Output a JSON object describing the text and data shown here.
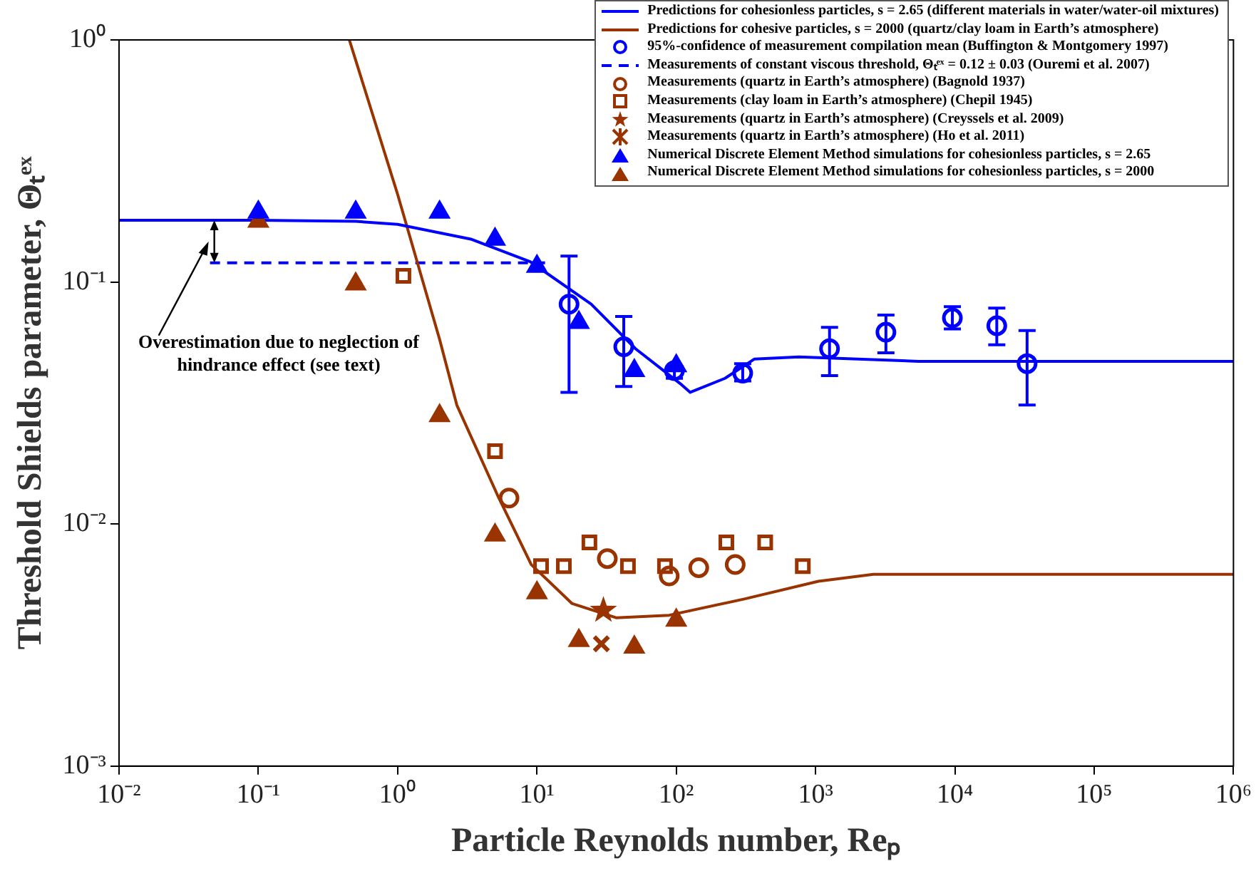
{
  "chart_data": {
    "type": "scatter",
    "xlabel": "Particle Reynolds number, Reₚ",
    "ylabel": "Threshold Shields parameter, Θₜᵉˣ",
    "log": "xy",
    "grid": false,
    "legend": "top right",
    "xlim": [
      0.01,
      1000000
    ],
    "ylim": [
      0.001,
      1
    ],
    "xticks": [
      {
        "value": 0.01,
        "label": "10⁻²"
      },
      {
        "value": 0.1,
        "label": "10⁻¹"
      },
      {
        "value": 1,
        "label": "10⁰"
      },
      {
        "value": 10,
        "label": "10¹"
      },
      {
        "value": 100,
        "label": "10²"
      },
      {
        "value": 1000,
        "label": "10³"
      },
      {
        "value": 10000,
        "label": "10⁴"
      },
      {
        "value": 100000,
        "label": "10⁵"
      },
      {
        "value": 1000000,
        "label": "10⁶"
      }
    ],
    "yticks": [
      {
        "value": 0.001,
        "label": "10⁻³"
      },
      {
        "value": 0.01,
        "label": "10⁻²"
      },
      {
        "value": 0.1,
        "label": "10⁻¹"
      },
      {
        "value": 1,
        "label": "10⁰"
      }
    ],
    "annotations": [
      "Overestimation due to neglection of hindrance effect (see text)"
    ],
    "series": [
      {
        "name": "Predictions for cohesionless particles, s = 2.65 (different materials in water/water-oil mixtures)",
        "type": "line",
        "marker": "none",
        "line_style": "solid",
        "color": "#0000ff",
        "x": [
          0.01,
          0.1,
          0.5,
          1,
          3.4,
          9,
          24.5,
          51,
          107,
          126,
          224,
          363,
          760,
          5500,
          1000000
        ],
        "values": [
          0.18,
          0.18,
          0.178,
          0.173,
          0.15,
          0.121,
          0.081,
          0.053,
          0.038,
          0.035,
          0.04,
          0.048,
          0.049,
          0.047,
          0.047
        ]
      },
      {
        "name": "Predictions for cohesive particles, s = 2000 (quartz/clay loam in Earth’s atmosphere)",
        "type": "line",
        "marker": "none",
        "line_style": "solid",
        "color": "#993300",
        "x": [
          0.45,
          1,
          2,
          2.66,
          5.2,
          9.1,
          17.8,
          37,
          89,
          308,
          1050,
          2600,
          1000000
        ],
        "values": [
          1.0,
          0.23,
          0.058,
          0.031,
          0.0132,
          0.0068,
          0.0047,
          0.0041,
          0.0042,
          0.0049,
          0.0058,
          0.0062,
          0.0062
        ]
      },
      {
        "name": "95%-confidence of measurement compilation mean (Buffington & Montgomery 1997)",
        "type": "scatter",
        "marker": "circle",
        "color": "#0000ff",
        "x": [
          17,
          42,
          97,
          300,
          1260,
          3200,
          9600,
          20000,
          33000
        ],
        "values": [
          0.081,
          0.054,
          0.043,
          0.042,
          0.053,
          0.062,
          0.071,
          0.066,
          0.046
        ],
        "errors": [
          [
            0.035,
            0.128
          ],
          [
            0.037,
            0.072
          ],
          [
            0.04,
            0.043
          ],
          [
            0.039,
            0.046
          ],
          [
            0.041,
            0.065
          ],
          [
            0.051,
            0.073
          ],
          [
            0.064,
            0.079
          ],
          [
            0.055,
            0.078
          ],
          [
            0.031,
            0.063
          ]
        ]
      },
      {
        "name": "Measurements of constant viscous threshold, Θₜᵉˣ = 0.12 ± 0.03 (Ouremi et al. 2007)",
        "type": "line",
        "marker": "none",
        "line_style": "dashed",
        "color": "#0000ff",
        "x": [
          0.045,
          12
        ],
        "values": [
          0.12,
          0.12
        ]
      },
      {
        "name": "Measurements (quartz in Earth’s atmosphere) (Bagnold 1937)",
        "type": "scatter",
        "marker": "circle",
        "color": "#993300",
        "x": [
          6.3,
          32,
          89,
          145,
          265
        ],
        "values": [
          0.0128,
          0.0072,
          0.0061,
          0.0066,
          0.0068
        ]
      },
      {
        "name": "Measurements (clay loam in Earth’s atmosphere) (Chepil 1945)",
        "type": "scatter",
        "marker": "square",
        "color": "#993300",
        "x": [
          1.1,
          5,
          10.7,
          15.6,
          23.8,
          45,
          83,
          229,
          435,
          810
        ],
        "values": [
          0.106,
          0.02,
          0.0067,
          0.0067,
          0.0084,
          0.0067,
          0.0067,
          0.0084,
          0.0084,
          0.0067
        ]
      },
      {
        "name": "Measurements (quartz in Earth’s atmosphere) (Creyssels et al. 2009)",
        "type": "scatter",
        "marker": "star",
        "color": "#993300",
        "x": [
          30
        ],
        "values": [
          0.0044
        ]
      },
      {
        "name": "Measurements (quartz in Earth’s atmosphere) (Ho et al. 2011)",
        "type": "scatter",
        "marker": "cross",
        "color": "#993300",
        "x": [
          29
        ],
        "values": [
          0.0032
        ]
      },
      {
        "name": "Numerical Discrete Element Method simulations for cohesionless particles, s = 2.65",
        "type": "scatter",
        "marker": "triangle",
        "color": "#0000ff",
        "x": [
          0.1,
          0.5,
          2,
          5,
          10,
          20,
          50,
          100
        ],
        "values": [
          0.194,
          0.194,
          0.194,
          0.15,
          0.116,
          0.068,
          0.043,
          0.045
        ]
      },
      {
        "name": "Numerical Discrete Element Method simulations for cohesionless particles, s = 2000",
        "type": "scatter",
        "marker": "triangle",
        "color": "#993300",
        "x": [
          0.1,
          0.5,
          2,
          5,
          10,
          20,
          50,
          100
        ],
        "values": [
          0.178,
          0.098,
          0.028,
          0.009,
          0.0052,
          0.0033,
          0.0031,
          0.004
        ]
      }
    ]
  }
}
